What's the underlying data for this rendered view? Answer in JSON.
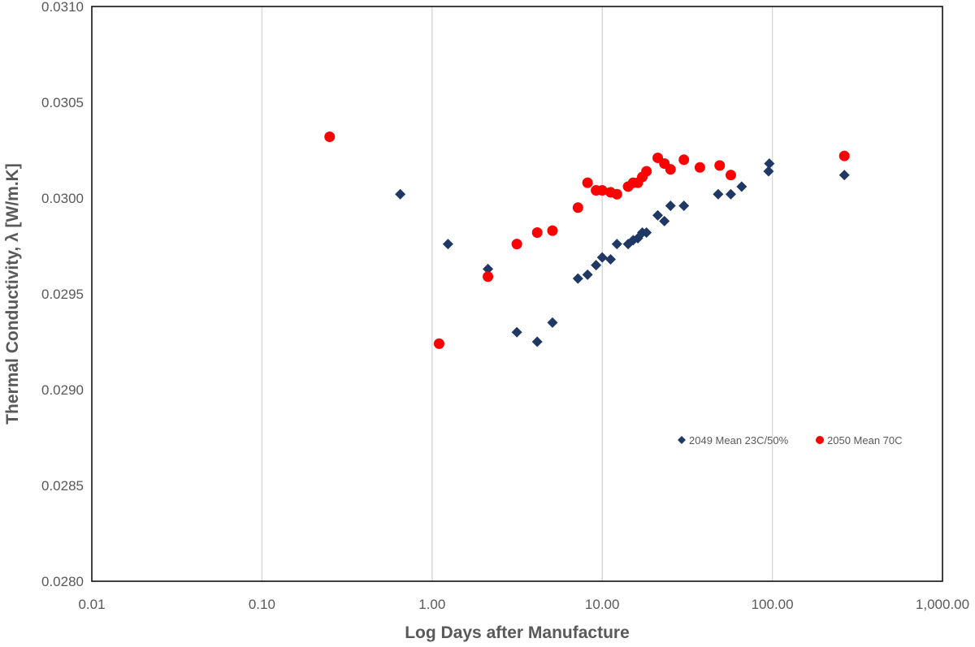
{
  "chart_data": {
    "type": "scatter",
    "title": "",
    "xlabel": "Log Days after Manufacture",
    "ylabel": "Thermal Conductivity, λ [W/m.K]",
    "x_scale": "log",
    "xlim": [
      0.01,
      1000
    ],
    "ylim": [
      0.028,
      0.031
    ],
    "x_ticks": [
      0.01,
      0.1,
      1,
      10,
      100,
      1000
    ],
    "x_tick_labels": [
      "0.01",
      "0.10",
      "1.00",
      "10.00",
      "100.00",
      "1,000.00"
    ],
    "y_ticks": [
      0.028,
      0.0285,
      0.029,
      0.0295,
      0.03,
      0.0305,
      0.031
    ],
    "y_tick_labels": [
      "0.0280",
      "0.0285",
      "0.0290",
      "0.0295",
      "0.0300",
      "0.0305",
      "0.0310"
    ],
    "grid": "vertical major",
    "legend_position": "center-right",
    "series": [
      {
        "name": "2049 Mean 23C/50%",
        "marker": "diamond",
        "color": "#1F3864",
        "x": [
          0.65,
          1.24,
          2.13,
          3.15,
          4.15,
          5.1,
          7.2,
          8.2,
          9.2,
          10.0,
          11.2,
          12.2,
          14.2,
          15.2,
          16.2,
          17.2,
          18.2,
          21.2,
          23.2,
          25.2,
          30.2,
          48.0,
          57.0,
          66.0,
          95.0,
          96.0,
          265.0
        ],
        "y": [
          0.03002,
          0.02976,
          0.02963,
          0.0293,
          0.02925,
          0.02935,
          0.02958,
          0.0296,
          0.02965,
          0.02969,
          0.02968,
          0.02976,
          0.02976,
          0.02978,
          0.02979,
          0.02982,
          0.02982,
          0.02991,
          0.02988,
          0.02996,
          0.02996,
          0.03002,
          0.03002,
          0.03006,
          0.03014,
          0.03018,
          0.03012
        ]
      },
      {
        "name": "2050 Mean  70C",
        "marker": "circle",
        "color": "#FF0000",
        "x": [
          0.25,
          1.1,
          2.13,
          3.15,
          4.15,
          5.1,
          7.2,
          8.2,
          9.2,
          10.0,
          11.2,
          12.2,
          14.2,
          15.2,
          16.2,
          17.2,
          18.2,
          21.2,
          23.2,
          25.2,
          30.2,
          37.5,
          49.0,
          57.0,
          265.0
        ],
        "y": [
          0.03032,
          0.02924,
          0.02959,
          0.02976,
          0.02982,
          0.02983,
          0.02995,
          0.03008,
          0.03004,
          0.03004,
          0.03003,
          0.03002,
          0.03006,
          0.03008,
          0.03008,
          0.03011,
          0.03014,
          0.03021,
          0.03018,
          0.03015,
          0.0302,
          0.03016,
          0.03017,
          0.03012,
          0.03022
        ]
      }
    ]
  }
}
